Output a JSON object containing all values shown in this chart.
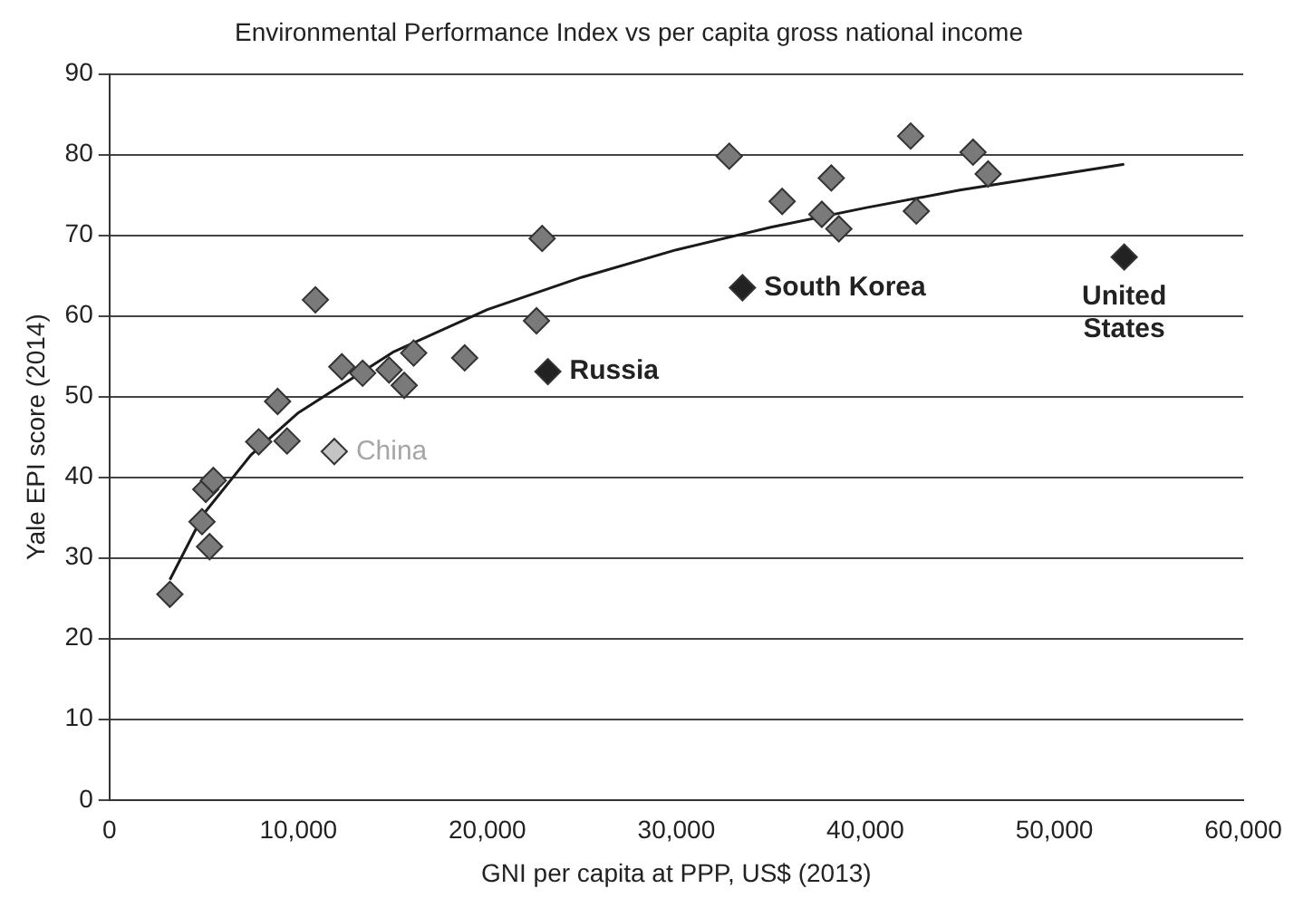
{
  "chart_data": {
    "type": "scatter",
    "title": "Environmental Performance Index vs per capita gross national income",
    "xlabel": "GNI per capita at PPP, US$ (2013)",
    "ylabel": "Yale EPI score (2014)",
    "xlim": [
      0,
      60000
    ],
    "xticks": [
      0,
      {
        "value": 10000,
        "label": "10,000"
      },
      {
        "value": 20000,
        "label": "20,000"
      },
      {
        "value": 30000,
        "label": "30,000"
      },
      {
        "value": 40000,
        "label": "40,000"
      },
      {
        "value": 50000,
        "label": "50,000"
      },
      {
        "value": 60000,
        "label": "60,000"
      }
    ],
    "ylim": [
      0,
      90
    ],
    "yticks": [
      0,
      10,
      20,
      30,
      40,
      50,
      60,
      70,
      80,
      90
    ],
    "grid": "y",
    "legend": false,
    "marker": "diamond",
    "series": [
      {
        "x": [
          3200,
          4900,
          5100,
          5300,
          5500,
          7900,
          8900,
          9400,
          10900,
          11900,
          12300,
          13400,
          14800,
          15600,
          16100,
          18800,
          22600,
          22900,
          23200,
          32800,
          33500,
          35600,
          37700,
          38200,
          38600,
          42400,
          42700,
          45700,
          46500,
          53700
        ],
        "values": [
          25.5,
          34.5,
          38.5,
          31.4,
          39.6,
          44.4,
          49.4,
          44.5,
          62,
          43.2,
          53.7,
          52.9,
          53.3,
          51.4,
          55.4,
          54.8,
          59.4,
          69.6,
          53.1,
          79.8,
          63.5,
          74.2,
          72.6,
          77.1,
          70.8,
          82.3,
          73,
          80.3,
          77.6,
          67.3
        ],
        "colors": [
          "#7a7a7a",
          "#7a7a7a",
          "#7a7a7a",
          "#7a7a7a",
          "#7a7a7a",
          "#7a7a7a",
          "#7a7a7a",
          "#7a7a7a",
          "#7a7a7a",
          "#c4c4c4",
          "#7a7a7a",
          "#7a7a7a",
          "#7a7a7a",
          "#7a7a7a",
          "#7a7a7a",
          "#7a7a7a",
          "#7a7a7a",
          "#7a7a7a",
          "#222222",
          "#7a7a7a",
          "#222222",
          "#7a7a7a",
          "#7a7a7a",
          "#7a7a7a",
          "#7a7a7a",
          "#7a7a7a",
          "#7a7a7a",
          "#7a7a7a",
          "#7a7a7a",
          "#222222"
        ]
      },
      {
        "type": "line",
        "color": "#1a1a1a",
        "marker": "none",
        "x": [
          3200,
          5000,
          7500,
          10000,
          15000,
          20000,
          25000,
          30000,
          35000,
          40000,
          45000,
          53700
        ],
        "values": [
          27.3,
          35.5,
          42.8,
          48,
          55.5,
          60.8,
          64.8,
          68.2,
          71,
          73.4,
          75.6,
          78.8
        ]
      }
    ],
    "annotations": [
      {
        "text": "China",
        "x": 11900,
        "y": 43.2
      },
      {
        "text": "Russia",
        "x": 23200,
        "y": 53.1
      },
      {
        "text": "South Korea",
        "x": 33500,
        "y": 63.5
      },
      {
        "text": "United States",
        "x": 53700,
        "y": 67.3
      }
    ]
  }
}
